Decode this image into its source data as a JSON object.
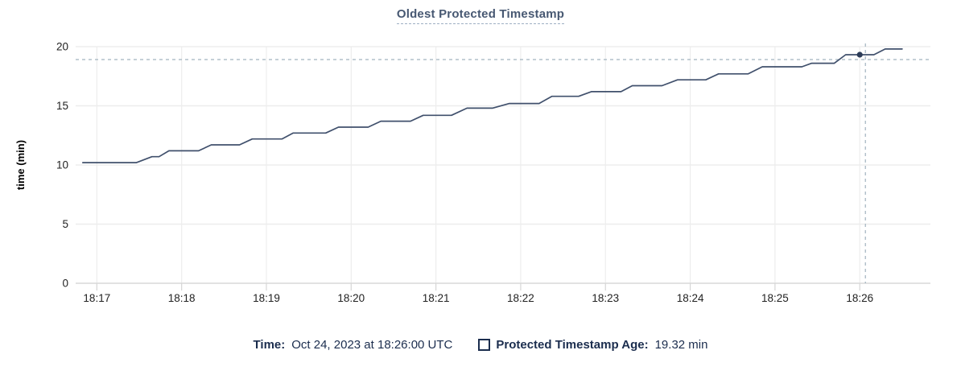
{
  "title": "Oldest Protected Timestamp",
  "colors": {
    "background": "#ffffff",
    "title": "#475872",
    "title_underline": "#9fafc4",
    "line": "#40506c",
    "dot": "#2c3c58",
    "crosshair": "#a2b3bf",
    "grid": "#ededed",
    "axis": "#d6d6d6",
    "tick_label": "#222222",
    "y_axis_title": "#000000",
    "legend_text": "#1b2d4e"
  },
  "chart_data": {
    "type": "line",
    "title": "Oldest Protected Timestamp",
    "xlabel": "",
    "ylabel": "time (min)",
    "ylim": [
      0,
      20
    ],
    "yticks": [
      0,
      5,
      10,
      15,
      20
    ],
    "x_domain": [
      "18:16:45",
      "18:26:50"
    ],
    "x_ticks": [
      "18:17",
      "18:18",
      "18:19",
      "18:20",
      "18:21",
      "18:22",
      "18:23",
      "18:24",
      "18:25",
      "18:26"
    ],
    "grid": true,
    "legend_position": "bottom",
    "line_style": "step-ramp",
    "series": [
      {
        "name": "Protected Timestamp Age",
        "unit": "min",
        "points": [
          [
            "18:16:50",
            10.2
          ],
          [
            "18:17:28",
            10.2
          ],
          [
            "18:17:39",
            10.7
          ],
          [
            "18:17:44",
            10.7
          ],
          [
            "18:17:51",
            11.2
          ],
          [
            "18:18:12",
            11.2
          ],
          [
            "18:18:21",
            11.7
          ],
          [
            "18:18:41",
            11.7
          ],
          [
            "18:18:50",
            12.2
          ],
          [
            "18:19:11",
            12.2
          ],
          [
            "18:19:19",
            12.7
          ],
          [
            "18:19:42",
            12.7
          ],
          [
            "18:19:51",
            13.2
          ],
          [
            "18:20:12",
            13.2
          ],
          [
            "18:20:21",
            13.7
          ],
          [
            "18:20:42",
            13.7
          ],
          [
            "18:20:51",
            14.2
          ],
          [
            "18:21:11",
            14.2
          ],
          [
            "18:21:22",
            14.8
          ],
          [
            "18:21:40",
            14.8
          ],
          [
            "18:21:52",
            15.2
          ],
          [
            "18:22:13",
            15.2
          ],
          [
            "18:22:22",
            15.8
          ],
          [
            "18:22:41",
            15.8
          ],
          [
            "18:22:50",
            16.2
          ],
          [
            "18:23:11",
            16.2
          ],
          [
            "18:23:19",
            16.7
          ],
          [
            "18:23:40",
            16.7
          ],
          [
            "18:23:51",
            17.2
          ],
          [
            "18:24:11",
            17.2
          ],
          [
            "18:24:20",
            17.7
          ],
          [
            "18:24:41",
            17.7
          ],
          [
            "18:24:51",
            18.3
          ],
          [
            "18:25:19",
            18.3
          ],
          [
            "18:25:26",
            18.6
          ],
          [
            "18:25:42",
            18.6
          ],
          [
            "18:25:50",
            19.32
          ],
          [
            "18:26:10",
            19.32
          ],
          [
            "18:26:18",
            19.8
          ],
          [
            "18:26:30",
            19.8
          ]
        ]
      }
    ],
    "hover_point": {
      "time": "18:26:00",
      "value": 19.32
    }
  },
  "legend": {
    "time_label": "Time:",
    "time_value": "Oct 24, 2023 at 18:26:00 UTC",
    "series_label": "Protected Timestamp Age:",
    "series_value": "19.32 min"
  }
}
